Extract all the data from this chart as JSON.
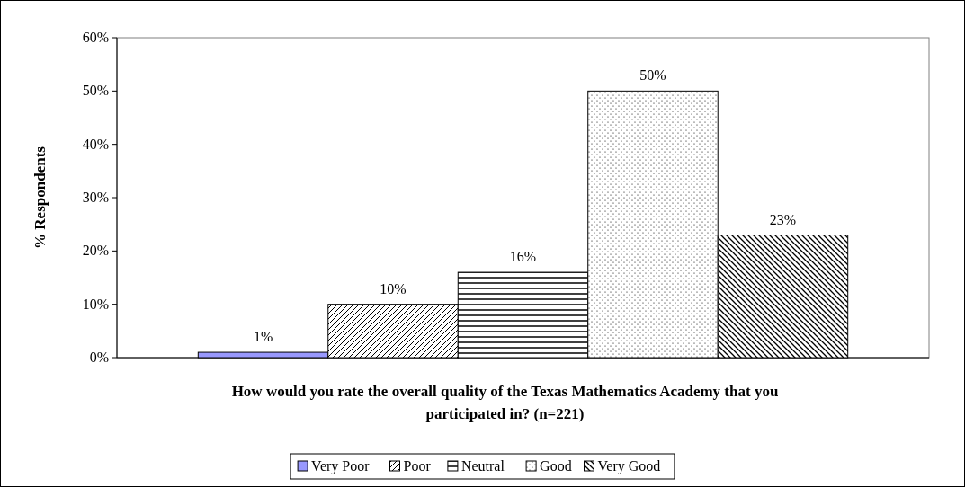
{
  "chart_data": {
    "type": "bar",
    "categories": [
      null
    ],
    "series": [
      {
        "name": "Very Poor",
        "color": "#9999ff",
        "values": [
          1
        ],
        "value_labels": [
          "1%"
        ]
      },
      {
        "name": "Poor",
        "color": "#000000",
        "values": [
          10
        ],
        "value_labels": [
          "10%"
        ]
      },
      {
        "name": "Neutral",
        "color": "#000000",
        "values": [
          16
        ],
        "value_labels": [
          "16%"
        ]
      },
      {
        "name": "Good",
        "color": "#000000",
        "values": [
          50
        ],
        "value_labels": [
          "50%"
        ]
      },
      {
        "name": "Very Good",
        "color": "#000000",
        "values": [
          23
        ],
        "value_labels": [
          "23%"
        ]
      }
    ],
    "ylabel": "% Respondents",
    "xlabel": "How would you rate the overall quality of the Texas Mathematics Academy that you participated in? (n=221)",
    "ylim": [
      0,
      60
    ],
    "yticks": [
      {
        "value": 0,
        "label": "0%"
      },
      {
        "value": 10,
        "label": "10%"
      },
      {
        "value": 20,
        "label": "20%"
      },
      {
        "value": 30,
        "label": "30%"
      },
      {
        "value": 40,
        "label": "40%"
      },
      {
        "value": 50,
        "label": "50%"
      },
      {
        "value": 60,
        "label": "60%"
      }
    ],
    "legend": "bottom",
    "grid": false
  }
}
